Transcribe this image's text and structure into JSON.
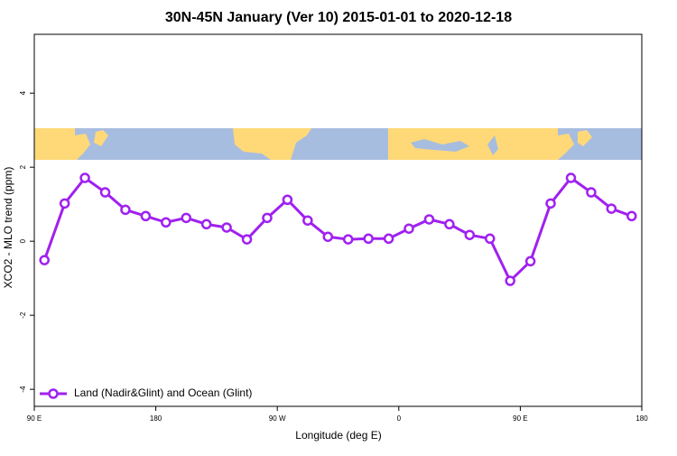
{
  "chart_data": {
    "type": "line",
    "title": "30N-45N January (Ver 10)   2015-01-01 to 2020-12-18",
    "xlabel": "Longitude (deg E)",
    "ylabel": "XCO2 - MLO trend (ppm)",
    "x": [
      97.5,
      112.5,
      127.5,
      142.5,
      157.5,
      172.5,
      187.5,
      202.5,
      217.5,
      232.5,
      247.5,
      262.5,
      277.5,
      292.5,
      307.5,
      322.5,
      337.5,
      352.5,
      367.5,
      382.5,
      397.5,
      412.5,
      427.5,
      442.5,
      457.5,
      472.5,
      487.5,
      502.5,
      517.5,
      532.5
    ],
    "series": [
      {
        "name": "Land (Nadir&Glint) and Ocean (Glint)",
        "color": "#a020f0",
        "values": [
          -0.51,
          1.02,
          1.71,
          1.32,
          0.85,
          0.68,
          0.51,
          0.63,
          0.46,
          0.37,
          0.05,
          0.63,
          1.12,
          0.56,
          0.12,
          0.05,
          0.07,
          0.07,
          0.34,
          0.59,
          0.46,
          0.17,
          0.07,
          -1.07,
          -0.54,
          1.02,
          1.71,
          1.32,
          0.88,
          0.68
        ]
      }
    ],
    "xlim": [
      90,
      540
    ],
    "xticks": [
      {
        "value": 90,
        "label": "90 E"
      },
      180,
      {
        "value": 270,
        "label": "90 W"
      },
      {
        "value": 360,
        "label": "0"
      },
      {
        "value": 450,
        "label": "90 E"
      },
      {
        "value": 540,
        "label": "180"
      }
    ],
    "ylim": [
      -4.46,
      5.59
    ],
    "yticks": [
      -4,
      -2,
      0,
      2,
      4
    ],
    "legend": "bottomleft"
  }
}
